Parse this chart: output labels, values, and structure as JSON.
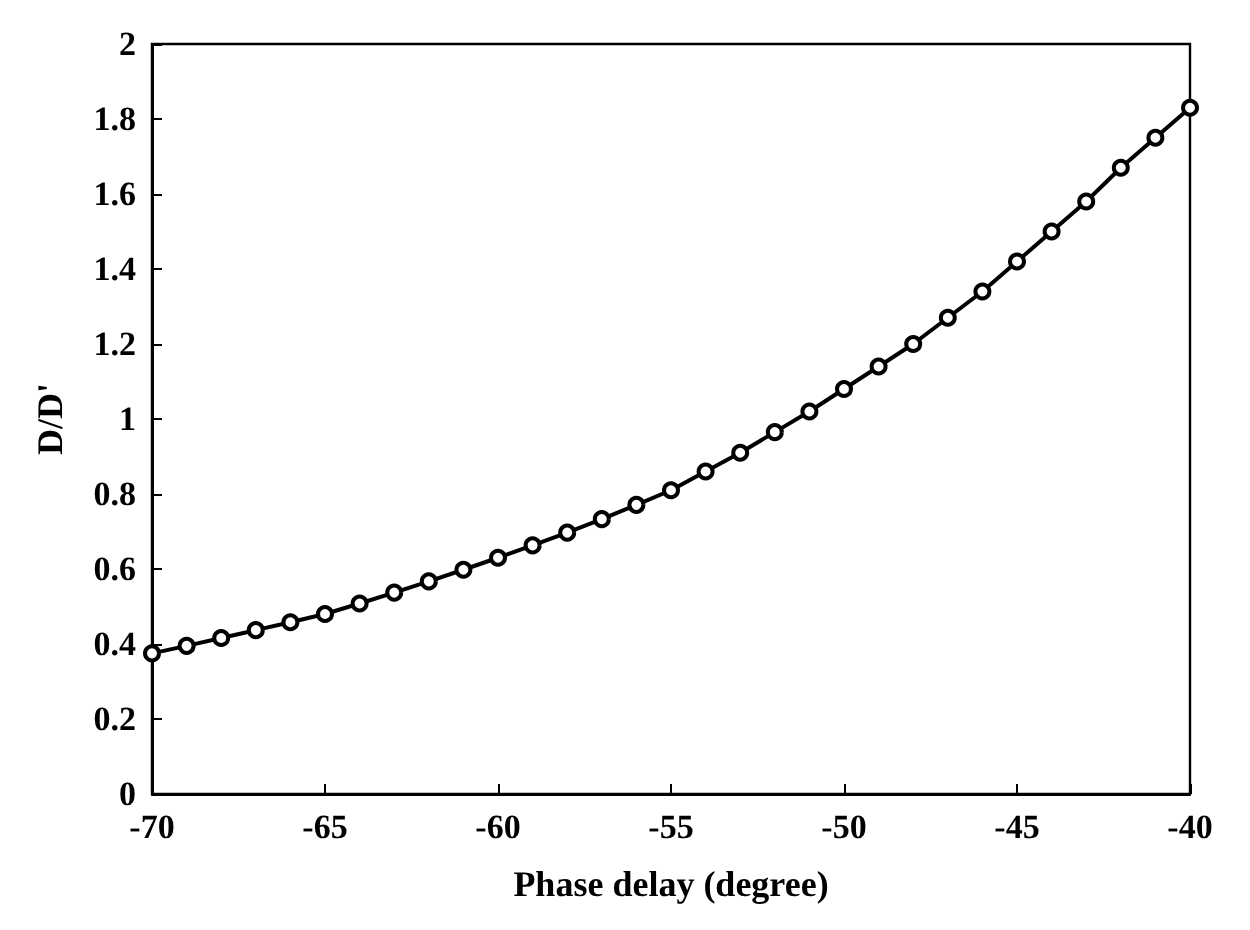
{
  "chart_data": {
    "type": "line",
    "xlabel": "Phase delay (degree)",
    "ylabel": "D/D'",
    "marker": "circle",
    "line_style": "solid",
    "xlim": [
      -70,
      -40
    ],
    "xticks": [
      -70,
      -65,
      -60,
      -55,
      -50,
      -45,
      -40
    ],
    "ylim": [
      0,
      2
    ],
    "yticks": [
      0,
      0.2,
      0.4,
      0.6,
      0.8,
      1,
      1.2,
      1.4,
      1.6,
      1.8,
      2
    ],
    "x": [
      -70,
      -69,
      -68,
      -67,
      -66,
      -65,
      -64,
      -63,
      -62,
      -61,
      -60,
      -59,
      -58,
      -57,
      -56,
      -55,
      -54,
      -53,
      -52,
      -51,
      -50,
      -49,
      -48,
      -47,
      -46,
      -45,
      -44,
      -43,
      -42,
      -41,
      -40
    ],
    "series": [
      {
        "color": "#000000",
        "values": [
          0.375,
          0.395,
          0.416,
          0.437,
          0.458,
          0.48,
          0.508,
          0.537,
          0.567,
          0.598,
          0.63,
          0.663,
          0.697,
          0.733,
          0.771,
          0.81,
          0.86,
          0.91,
          0.965,
          1.02,
          1.08,
          1.14,
          1.2,
          1.27,
          1.34,
          1.42,
          1.5,
          1.58,
          1.67,
          1.75,
          1.83
        ]
      }
    ]
  }
}
